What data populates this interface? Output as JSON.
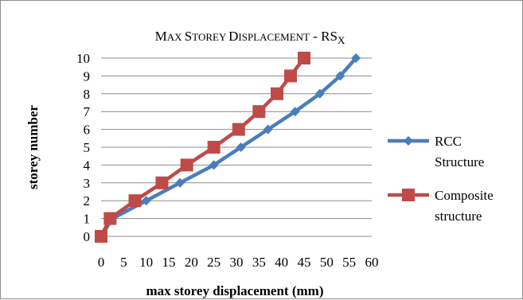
{
  "chart_data": {
    "type": "line",
    "title_parts": [
      {
        "text": "M",
        "style": "big"
      },
      {
        "text": "AX ",
        "style": "small"
      },
      {
        "text": "S",
        "style": "big"
      },
      {
        "text": "TOREY ",
        "style": "small"
      },
      {
        "text": "D",
        "style": "big"
      },
      {
        "text": "ISPLACEMENT",
        "style": "small"
      },
      {
        "text": " - RS",
        "style": "big"
      },
      {
        "text": "X",
        "style": "sub"
      }
    ],
    "xlabel": "max storey displacement (mm)",
    "ylabel": "storey number",
    "xlim": [
      0,
      60
    ],
    "ylim": [
      0,
      10
    ],
    "xticks": [
      "0",
      "5",
      "10",
      "15",
      "20",
      "25",
      "30",
      "35",
      "40",
      "45",
      "50",
      "55",
      "60"
    ],
    "yticks": [
      "0",
      "1",
      "2",
      "3",
      "4",
      "5",
      "6",
      "7",
      "8",
      "9",
      "10"
    ],
    "grid": "horizontal",
    "legend_position": "right",
    "series": [
      {
        "name": [
          "RCC",
          "Structure"
        ],
        "color": "#4a7ebb",
        "marker": "diamond",
        "points": [
          [
            0,
            0
          ],
          [
            2.5,
            1
          ],
          [
            10,
            2
          ],
          [
            17.5,
            3
          ],
          [
            25,
            4
          ],
          [
            31,
            5
          ],
          [
            37,
            6
          ],
          [
            43,
            7
          ],
          [
            48.5,
            8
          ],
          [
            53,
            9
          ],
          [
            56.5,
            10
          ]
        ]
      },
      {
        "name": [
          "Composite",
          "structure"
        ],
        "color": "#be4b48",
        "marker": "square",
        "points": [
          [
            0,
            0
          ],
          [
            2,
            1
          ],
          [
            7.5,
            2
          ],
          [
            13.5,
            3
          ],
          [
            19,
            4
          ],
          [
            25,
            5
          ],
          [
            30.5,
            6
          ],
          [
            35,
            7
          ],
          [
            39,
            8
          ],
          [
            42,
            9
          ],
          [
            45,
            10
          ]
        ]
      }
    ]
  }
}
